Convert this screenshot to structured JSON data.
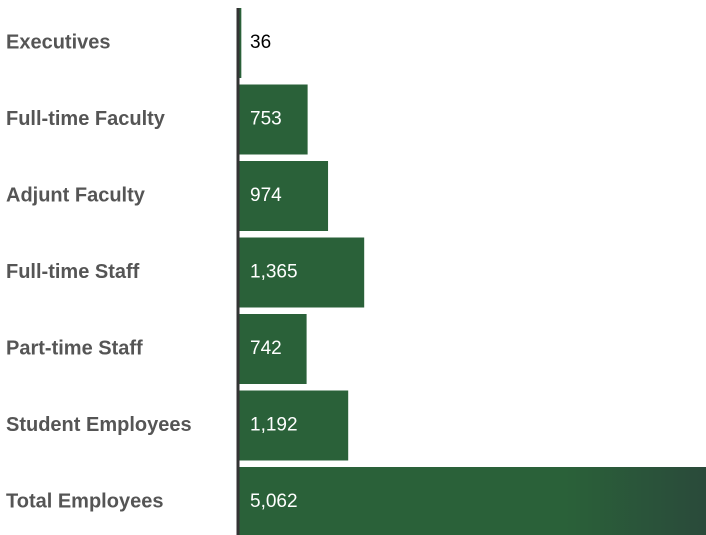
{
  "chart_data": {
    "type": "bar",
    "orientation": "horizontal",
    "categories": [
      "Executives",
      "Full-time Faculty",
      "Adjunt Faculty",
      "Full-time Staff",
      "Part-time Staff",
      "Student Employees",
      "Total Employees"
    ],
    "values": [
      36,
      753,
      974,
      1365,
      742,
      1192,
      5062
    ],
    "value_labels": [
      "36",
      "753",
      "974",
      "1,365",
      "742",
      "1,192",
      "5,062"
    ],
    "color": "#2a6139"
  }
}
